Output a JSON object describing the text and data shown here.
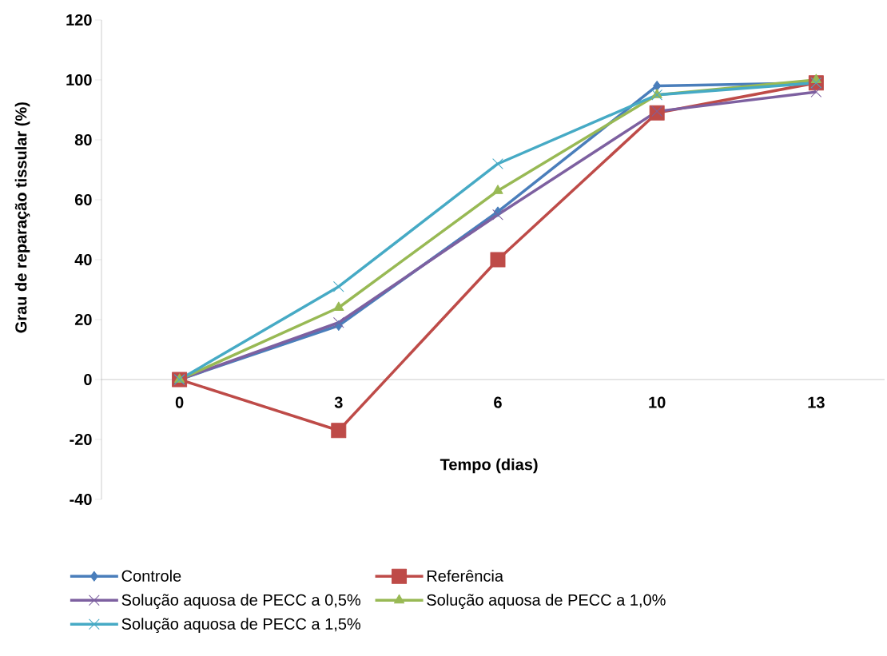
{
  "chart_data": {
    "type": "line",
    "xlabel": "Tempo (dias)",
    "ylabel": "Grau de reparação tissular (%)",
    "categories": [
      "0",
      "3",
      "6",
      "10",
      "13"
    ],
    "series": [
      {
        "name": "Controle",
        "color": "#4a7ebb",
        "marker": "diamond",
        "values": [
          0,
          18,
          56,
          98,
          99
        ]
      },
      {
        "name": "Referência",
        "color": "#be4b48",
        "marker": "square",
        "values": [
          0,
          -17,
          40,
          89,
          99
        ]
      },
      {
        "name": "Solução aquosa de PECC a 0,5%",
        "color": "#7d60a0",
        "marker": "cross",
        "values": [
          0,
          19,
          55,
          89.5,
          96
        ]
      },
      {
        "name": "Solução aquosa de PECC a 1,0%",
        "color": "#98b954",
        "marker": "triangle",
        "values": [
          0,
          24,
          63,
          95,
          100
        ]
      },
      {
        "name": "Solução aquosa  de PECC  a 1,5%",
        "color": "#46aac5",
        "marker": "cross",
        "values": [
          0,
          31,
          72,
          95,
          99
        ]
      }
    ],
    "ylim": [
      -40,
      120
    ],
    "yticks": [
      -40,
      -20,
      0,
      20,
      40,
      60,
      80,
      100,
      120
    ],
    "grid": false,
    "legend": "bottom",
    "line_style": "solid"
  }
}
